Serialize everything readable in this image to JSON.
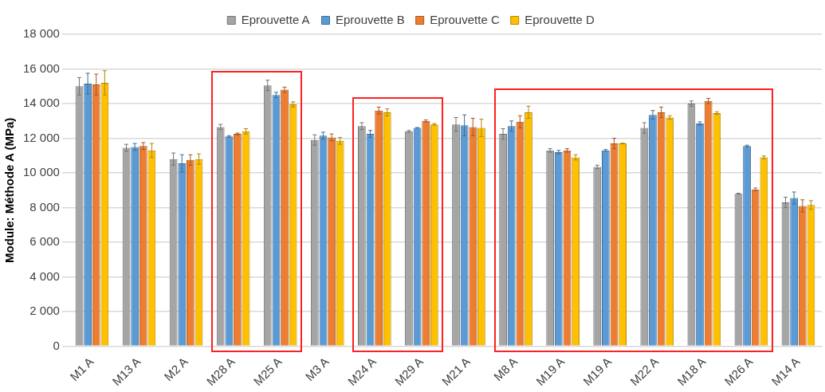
{
  "chart_data": {
    "type": "bar",
    "ylabel": "Module: Méthode A (MPa)",
    "categories": [
      "M1 A",
      "M13 A",
      "M2 A",
      "M28 A",
      "M25 A",
      "M3 A",
      "M24 A",
      "M29 A",
      "M21 A",
      "M8 A",
      "M19 A",
      "M19 A",
      "M22 A",
      "M18 A",
      "M26 A",
      "M14 A"
    ],
    "series": [
      {
        "name": "Eprouvette A",
        "color": "#a5a5a5",
        "values": [
          15000,
          11450,
          10800,
          12650,
          15050,
          11900,
          12700,
          12400,
          12800,
          12250,
          11300,
          10350,
          12600,
          14000,
          8800,
          8300
        ],
        "errors": [
          500,
          200,
          350,
          150,
          300,
          300,
          200,
          50,
          400,
          300,
          100,
          100,
          300,
          150,
          30,
          300
        ]
      },
      {
        "name": "Eprouvette B",
        "color": "#5b9bd5",
        "values": [
          15150,
          11500,
          10550,
          12100,
          14500,
          12150,
          12250,
          12600,
          12750,
          12700,
          11200,
          11300,
          13350,
          12850,
          11550,
          8550
        ],
        "errors": [
          600,
          200,
          500,
          50,
          150,
          200,
          200,
          20,
          600,
          300,
          100,
          50,
          250,
          100,
          50,
          350
        ]
      },
      {
        "name": "Eprouvette C",
        "color": "#ed7d31",
        "values": [
          15100,
          11550,
          10750,
          12250,
          14800,
          12050,
          13600,
          13000,
          12650,
          12950,
          11300,
          11700,
          13500,
          14150,
          9050,
          8100
        ],
        "errors": [
          600,
          200,
          300,
          50,
          150,
          200,
          200,
          60,
          500,
          350,
          100,
          300,
          300,
          150,
          80,
          350
        ]
      },
      {
        "name": "Eprouvette D",
        "color": "#ffc000",
        "values": [
          15200,
          11300,
          10800,
          12400,
          13950,
          11850,
          13500,
          12800,
          12600,
          13500,
          10900,
          11700,
          13200,
          13450,
          10900,
          8150
        ],
        "errors": [
          700,
          400,
          300,
          150,
          150,
          200,
          200,
          50,
          500,
          350,
          150,
          20,
          100,
          80,
          80,
          250
        ]
      }
    ],
    "ylim": [
      0,
      18000
    ],
    "yticks": [
      {
        "value": 0,
        "label": "0"
      },
      {
        "value": 2000,
        "label": "2 000"
      },
      {
        "value": 4000,
        "label": "4 000"
      },
      {
        "value": 6000,
        "label": "6 000"
      },
      {
        "value": 8000,
        "label": "8 000"
      },
      {
        "value": 10000,
        "label": "10 000"
      },
      {
        "value": 12000,
        "label": "12 000"
      },
      {
        "value": 14000,
        "label": "14 000"
      },
      {
        "value": 16000,
        "label": "16 000"
      },
      {
        "value": 18000,
        "label": "18 000"
      }
    ],
    "grid": "y",
    "legend": "top"
  }
}
